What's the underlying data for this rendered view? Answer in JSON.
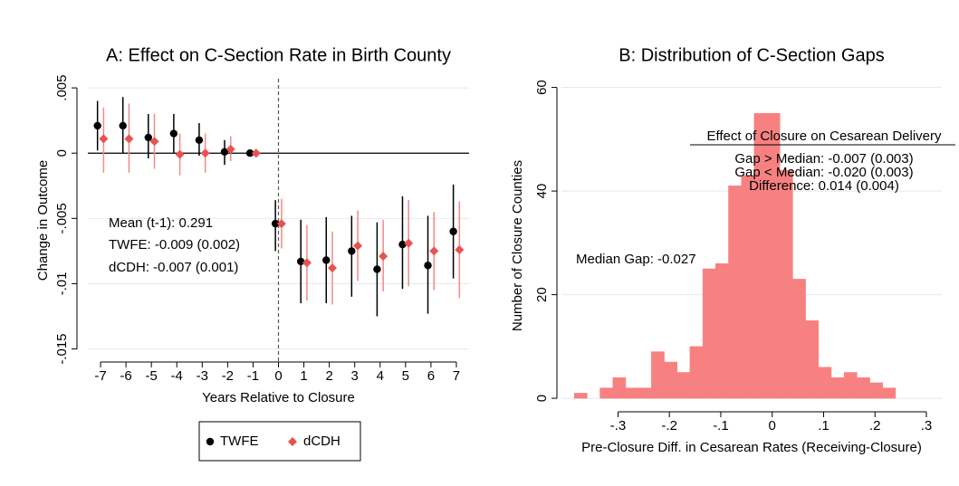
{
  "chart_data": [
    {
      "type": "errorbar",
      "title": "A: Effect on C-Section Rate in Birth County",
      "xlabel": "Years Relative to Closure",
      "ylabel": "Change in Outcome",
      "x": [
        -7,
        -6,
        -5,
        -4,
        -3,
        -2,
        -1,
        0,
        1,
        2,
        3,
        4,
        5,
        6,
        7
      ],
      "series": [
        {
          "name": "TWFE",
          "color": "#000000",
          "ci_color": "#000000",
          "marker": "circle",
          "values": [
            0.0021,
            0.0021,
            0.0012,
            0.0015,
            0.001,
            0.0001,
            0,
            -0.0054,
            -0.0083,
            -0.0082,
            -0.0075,
            -0.0089,
            -0.007,
            -0.0086,
            -0.006
          ],
          "lower": [
            0.0002,
            0,
            -0.0004,
            0,
            -0.0002,
            -0.0009,
            0,
            -0.0075,
            -0.0115,
            -0.0115,
            -0.011,
            -0.0125,
            -0.0104,
            -0.0123,
            -0.0096
          ],
          "upper": [
            0.004,
            0.0043,
            0.003,
            0.003,
            0.0023,
            0.001,
            0,
            -0.0036,
            -0.0051,
            -0.0049,
            -0.0048,
            -0.0053,
            -0.0033,
            -0.0048,
            -0.0024
          ]
        },
        {
          "name": "dCDH",
          "color": "#e8524f",
          "ci_color": "#f08a88",
          "marker": "diamond",
          "values": [
            0.0011,
            0.0011,
            0.0009,
            -0.0001,
            0,
            0.0003,
            0,
            -0.0054,
            -0.0084,
            -0.0088,
            -0.0071,
            -0.0079,
            -0.0069,
            -0.0075,
            -0.0074
          ],
          "lower": [
            -0.0015,
            -0.0015,
            -0.0012,
            -0.0017,
            -0.0015,
            -0.0006,
            0,
            -0.0073,
            -0.0113,
            -0.0116,
            -0.0098,
            -0.0106,
            -0.0102,
            -0.0105,
            -0.0111
          ],
          "upper": [
            0.0035,
            0.0038,
            0.003,
            0.0015,
            0.0015,
            0.0013,
            0,
            -0.0035,
            -0.0055,
            -0.006,
            -0.0044,
            -0.0051,
            -0.0036,
            -0.0045,
            -0.0037
          ]
        }
      ],
      "xlim": [
        -7.5,
        7.5
      ],
      "xticks": [
        -7,
        -6,
        -5,
        -4,
        -3,
        -2,
        -1,
        0,
        1,
        2,
        3,
        4,
        5,
        6,
        7
      ],
      "ylim": [
        -0.016,
        0.0057
      ],
      "yticks": [
        {
          "value": 0.005,
          "label": ".005"
        },
        0,
        {
          "value": -0.005,
          "label": "-.005"
        },
        {
          "value": -0.01,
          "label": "-.01"
        },
        {
          "value": -0.015,
          "label": "-.015"
        }
      ],
      "grid": true,
      "hline": 0,
      "vline": 0,
      "legend": "bottom",
      "annotations": [
        "Mean (t-1): 0.291",
        "TWFE: -0.009 (0.002)",
        "dCDH: -0.007 (0.001)"
      ]
    },
    {
      "type": "histogram",
      "title": "B: Distribution of C-Section Gaps",
      "xlabel": "Pre-Closure Diff. in Cesarean Rates (Receiving-Closure)",
      "ylabel": "Number of Closure Counties",
      "bins": [
        -0.385,
        -0.36,
        -0.335,
        -0.31,
        -0.285,
        -0.26,
        -0.235,
        -0.21,
        -0.185,
        -0.16,
        -0.135,
        -0.11,
        -0.085,
        -0.06,
        -0.035,
        -0.01,
        0.015,
        0.04,
        0.065,
        0.09,
        0.115,
        0.14,
        0.165,
        0.19,
        0.215,
        0.24
      ],
      "counts": [
        1,
        0,
        2,
        4,
        2,
        2,
        9,
        7,
        5,
        10,
        25,
        26,
        41,
        43,
        55,
        55,
        44,
        23,
        15,
        6,
        4,
        5,
        4,
        3,
        2
      ],
      "color": "#f78181",
      "xlim": [
        -0.41,
        0.33
      ],
      "xticks": [
        {
          "value": -0.3,
          "label": "-.3"
        },
        {
          "value": -0.2,
          "label": "-.2"
        },
        {
          "value": -0.1,
          "label": "-.1"
        },
        0,
        {
          "value": 0.1,
          "label": ".1"
        },
        {
          "value": 0.2,
          "label": ".2"
        },
        {
          "value": 0.3,
          "label": ".3"
        }
      ],
      "ylim": [
        -2.6,
        61.5
      ],
      "yticks": [
        0,
        20,
        40,
        60
      ],
      "grid": true,
      "annotations": [
        "Median Gap: -0.027"
      ],
      "box_title": "Effect of Closure on Cesarean Delivery",
      "box_lines": [
        "Gap > Median: -0.007 (0.003)",
        "Gap < Median: -0.020 (0.003)",
        "Difference: 0.014 (0.004)"
      ]
    }
  ]
}
